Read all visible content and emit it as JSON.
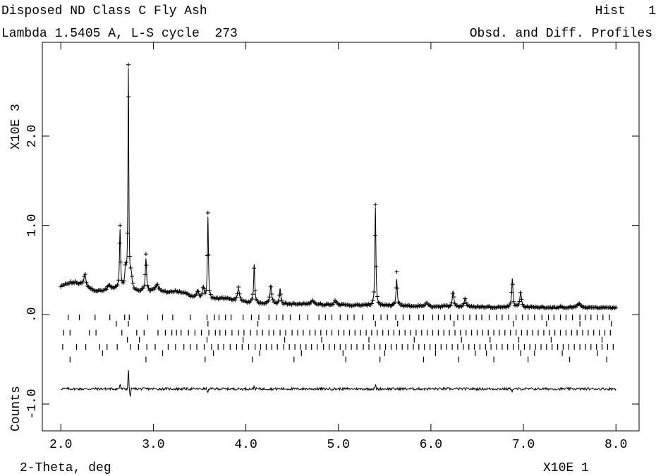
{
  "header": {
    "title": "Disposed ND Class C Fly Ash",
    "subtitle": "Lambda 1.5405 A, L-S cycle  273",
    "hist_label": "Hist   1",
    "profile_label": "Obsd. and Diff. Profiles"
  },
  "chart_data": {
    "type": "scatter",
    "title": "Disposed ND Class C Fly Ash",
    "xlabel": "2-Theta, deg",
    "x_multiplier": "X10E  1",
    "ylabel": "Counts",
    "y_multiplier": "X10E  3",
    "xlim": [
      1.8,
      8.25
    ],
    "ylim": [
      -1.3,
      3.05
    ],
    "x_ticks": [
      2.0,
      3.0,
      4.0,
      5.0,
      6.0,
      7.0,
      8.0
    ],
    "x_tick_labels": [
      "2.0",
      "3.0",
      "4.0",
      "5.0",
      "6.0",
      "7.0",
      "8.0"
    ],
    "y_ticks": [
      -1.0,
      0.0,
      1.0,
      2.0
    ],
    "y_tick_labels": [
      "-1.0",
      ".0",
      "1.0",
      "2.0"
    ],
    "grid": false,
    "legend": "none",
    "x_range": [
      2.0,
      8.0
    ],
    "background": 0.07,
    "background_features": [
      {
        "center": 2.15,
        "height": 0.13,
        "width": 0.2
      },
      {
        "center": 2.6,
        "height": 0.08,
        "width": 0.2
      },
      {
        "center": 3.0,
        "height": 0.09,
        "width": 0.25
      },
      {
        "center": 3.3,
        "height": 0.07,
        "width": 0.15
      },
      {
        "center": 3.75,
        "height": 0.04,
        "width": 0.2
      }
    ],
    "peaks": [
      {
        "center": 2.26,
        "height": 0.14,
        "width": 0.012
      },
      {
        "center": 2.52,
        "height": 0.06,
        "width": 0.015
      },
      {
        "center": 2.64,
        "height": 0.66,
        "width": 0.007
      },
      {
        "center": 2.7,
        "height": 0.22,
        "width": 0.01
      },
      {
        "center": 2.73,
        "height": 2.45,
        "width": 0.0055
      },
      {
        "center": 2.76,
        "height": 0.15,
        "width": 0.012
      },
      {
        "center": 2.92,
        "height": 0.36,
        "width": 0.008
      },
      {
        "center": 3.04,
        "height": 0.07,
        "width": 0.02
      },
      {
        "center": 3.48,
        "height": 0.1,
        "width": 0.012
      },
      {
        "center": 3.54,
        "height": 0.14,
        "width": 0.01
      },
      {
        "center": 3.59,
        "height": 0.92,
        "width": 0.0065
      },
      {
        "center": 3.92,
        "height": 0.14,
        "width": 0.012
      },
      {
        "center": 4.09,
        "height": 0.43,
        "width": 0.007
      },
      {
        "center": 4.27,
        "height": 0.21,
        "width": 0.01
      },
      {
        "center": 4.37,
        "height": 0.17,
        "width": 0.008
      },
      {
        "center": 4.72,
        "height": 0.05,
        "width": 0.02
      },
      {
        "center": 4.97,
        "height": 0.05,
        "width": 0.02
      },
      {
        "center": 5.4,
        "height": 1.1,
        "width": 0.0065
      },
      {
        "center": 5.63,
        "height": 0.3,
        "width": 0.008
      },
      {
        "center": 5.95,
        "height": 0.04,
        "width": 0.015
      },
      {
        "center": 6.24,
        "height": 0.17,
        "width": 0.01
      },
      {
        "center": 6.37,
        "height": 0.1,
        "width": 0.01
      },
      {
        "center": 6.88,
        "height": 0.32,
        "width": 0.008
      },
      {
        "center": 6.97,
        "height": 0.17,
        "width": 0.01
      },
      {
        "center": 7.6,
        "height": 0.04,
        "width": 0.02
      }
    ],
    "difference_curve": {
      "offset": -0.83,
      "noise": 0.014,
      "features": [
        {
          "x": 2.64,
          "value": 0.06
        },
        {
          "x": 2.73,
          "value": 0.22
        },
        {
          "x": 2.75,
          "value": -0.1
        },
        {
          "x": 3.59,
          "value": -0.05
        },
        {
          "x": 4.09,
          "value": 0.03
        },
        {
          "x": 5.4,
          "value": 0.05
        },
        {
          "x": 6.88,
          "value": -0.03
        }
      ]
    },
    "reflection_tick_rows": [
      {
        "phase": 1,
        "y": -0.03,
        "positions": [
          2.08,
          2.2,
          2.37,
          2.53,
          2.69,
          2.74,
          2.94,
          3.1,
          3.21,
          3.4,
          3.58,
          3.66,
          3.71,
          3.78,
          3.84,
          3.97,
          4.06,
          4.14,
          4.25,
          4.33,
          4.4,
          4.48,
          4.58,
          4.67,
          4.79,
          4.86,
          4.93,
          5.02,
          5.1,
          5.17,
          5.26,
          5.38,
          5.46,
          5.53,
          5.62,
          5.7,
          5.77,
          5.87,
          5.92,
          6.02,
          6.08,
          6.15,
          6.21,
          6.29,
          6.35,
          6.42,
          6.49,
          6.55,
          6.63,
          6.71,
          6.77,
          6.84,
          6.92,
          6.99,
          7.05,
          7.12,
          7.2,
          7.27,
          7.33,
          7.4,
          7.46,
          7.53,
          7.61,
          7.67,
          7.73,
          7.8,
          7.86,
          7.93
        ]
      },
      {
        "phase": 2,
        "y": -0.1,
        "positions": [
          2.6,
          2.73,
          3.59,
          4.13,
          5.4,
          5.64,
          6.25,
          6.89,
          7.25,
          7.61,
          7.95
        ]
      },
      {
        "phase": 3,
        "y": -0.2,
        "positions": [
          2.03,
          2.1,
          2.31,
          2.38,
          2.66,
          2.82,
          2.9,
          3.05,
          3.13,
          3.2,
          3.25,
          3.3,
          3.38,
          3.45,
          3.52,
          3.6,
          3.67,
          3.72,
          3.78,
          3.85,
          3.92,
          3.98,
          4.05,
          4.12,
          4.18,
          4.25,
          4.3,
          4.37,
          4.43,
          4.5,
          4.56,
          4.62,
          4.69,
          4.75,
          4.81,
          4.87,
          4.93,
          5.0,
          5.06,
          5.12,
          5.18,
          5.24,
          5.3,
          5.36,
          5.42,
          5.48,
          5.54,
          5.6,
          5.66,
          5.72,
          5.78,
          5.84,
          5.9,
          5.96,
          6.02,
          6.08,
          6.14,
          6.2,
          6.26,
          6.32,
          6.38,
          6.44,
          6.5,
          6.56,
          6.62,
          6.68,
          6.74,
          6.8,
          6.86,
          6.92,
          6.98,
          7.04,
          7.1,
          7.16,
          7.22,
          7.28,
          7.34,
          7.4,
          7.46,
          7.52,
          7.58,
          7.64,
          7.7,
          7.76,
          7.82,
          7.88,
          7.94
        ]
      },
      {
        "phase": 4,
        "y": -0.28,
        "positions": [
          2.72,
          2.85,
          3.58,
          3.97,
          4.42,
          4.82,
          5.33,
          5.82,
          6.33,
          6.64,
          6.95,
          7.3,
          7.85
        ]
      },
      {
        "phase": 5,
        "y": -0.36,
        "positions": [
          2.02,
          2.17,
          2.27,
          2.42,
          2.5,
          2.61,
          2.75,
          2.84,
          2.93,
          3.02,
          3.16,
          3.24,
          3.33,
          3.4,
          3.47,
          3.55,
          3.63,
          3.7,
          3.76,
          3.83,
          3.9,
          3.96,
          4.03,
          4.1,
          4.16,
          4.22,
          4.28,
          4.34,
          4.41,
          4.47,
          4.53,
          4.59,
          4.65,
          4.71,
          4.77,
          4.84,
          4.9,
          4.96,
          5.02,
          5.08,
          5.14,
          5.2,
          5.27,
          5.33,
          5.39,
          5.45,
          5.51,
          5.57,
          5.63,
          5.69,
          5.75,
          5.81,
          5.87,
          5.93,
          5.99,
          6.05,
          6.11,
          6.17,
          6.23,
          6.29,
          6.35,
          6.41,
          6.47,
          6.53,
          6.59,
          6.65,
          6.71,
          6.77,
          6.83,
          6.89,
          6.95,
          7.01,
          7.07,
          7.13,
          7.19,
          7.25,
          7.31,
          7.37,
          7.43,
          7.49,
          7.55,
          7.61,
          7.67,
          7.73,
          7.79,
          7.85,
          7.91,
          7.97
        ]
      },
      {
        "phase": 6,
        "y": -0.43,
        "positions": [
          2.45,
          3.1,
          3.65,
          4.15,
          4.6,
          5.05,
          5.5,
          6.05,
          6.48,
          6.6,
          6.97,
          7.12,
          7.42,
          7.8
        ]
      },
      {
        "phase": 7,
        "y": -0.5,
        "positions": [
          2.1,
          2.92,
          3.56,
          4.07,
          4.52,
          5.08,
          5.45,
          5.92,
          6.3,
          6.68,
          7.05,
          7.5,
          7.9
        ]
      }
    ]
  }
}
